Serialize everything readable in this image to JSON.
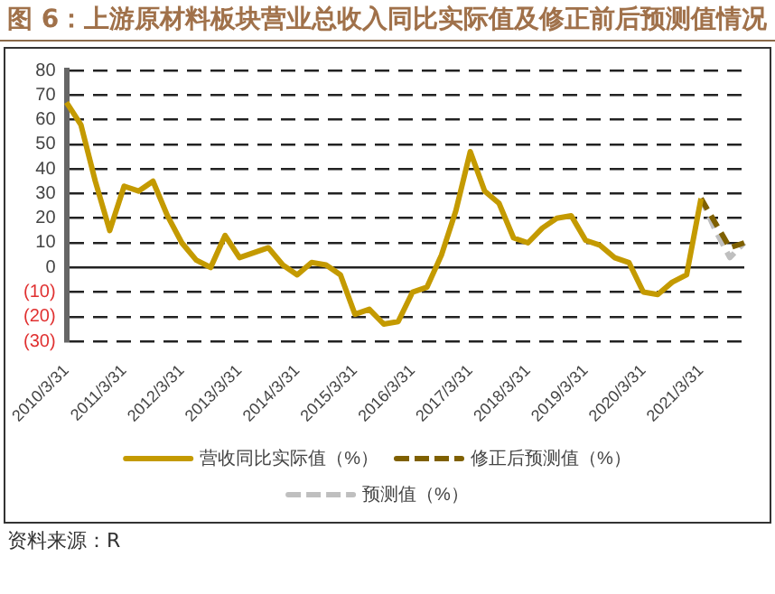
{
  "chart_data": {
    "type": "line",
    "title": "图 6：上游原材料板块营业总收入同比实际值及修正前后预测值情况",
    "categories": [
      "2010/3/31",
      null,
      null,
      null,
      "2011/3/31",
      null,
      null,
      null,
      "2012/3/31",
      null,
      null,
      null,
      "2013/3/31",
      null,
      null,
      null,
      "2014/3/31",
      null,
      null,
      null,
      "2015/3/31",
      null,
      null,
      null,
      "2016/3/31",
      null,
      null,
      null,
      "2017/3/31",
      null,
      null,
      null,
      "2018/3/31",
      null,
      null,
      null,
      "2019/3/31",
      null,
      null,
      null,
      "2020/3/31",
      null,
      null,
      null,
      "2021/3/31",
      null,
      null,
      null
    ],
    "series": [
      {
        "name": "营收同比实际值（%）",
        "color": "#c49a00",
        "line_style": "solid",
        "values": [
          67,
          58,
          35,
          15,
          33,
          31,
          35,
          21,
          10,
          3,
          0,
          13,
          4,
          6,
          8,
          1,
          -3,
          2,
          1,
          -3,
          -19,
          -17,
          -23,
          -22,
          -10,
          -8,
          5,
          23,
          47,
          31,
          26,
          12,
          10,
          16,
          20,
          21,
          11,
          9,
          4,
          2,
          -10,
          -11,
          -6,
          -3,
          28,
          null,
          null,
          null
        ]
      },
      {
        "name": "修正后预测值（%）",
        "color": "#7f6000",
        "line_style": "dashed",
        "values": [
          null,
          null,
          null,
          null,
          null,
          null,
          null,
          null,
          null,
          null,
          null,
          null,
          null,
          null,
          null,
          null,
          null,
          null,
          null,
          null,
          null,
          null,
          null,
          null,
          null,
          null,
          null,
          null,
          null,
          null,
          null,
          null,
          null,
          null,
          null,
          null,
          null,
          null,
          null,
          null,
          null,
          null,
          null,
          null,
          28,
          18,
          8,
          10
        ]
      },
      {
        "name": "预测值（%）",
        "color": "#bfbfbf",
        "line_style": "dashed",
        "values": [
          null,
          null,
          null,
          null,
          null,
          null,
          null,
          null,
          null,
          null,
          null,
          null,
          null,
          null,
          null,
          null,
          null,
          null,
          null,
          null,
          null,
          null,
          null,
          null,
          null,
          null,
          null,
          null,
          null,
          null,
          null,
          null,
          null,
          null,
          null,
          null,
          null,
          null,
          null,
          null,
          null,
          null,
          null,
          null,
          28,
          15,
          4,
          10
        ]
      }
    ],
    "ylim": [
      -30,
      80
    ],
    "yticks": [
      {
        "value": -30,
        "label": "(30)"
      },
      {
        "value": -20,
        "label": "(20)"
      },
      {
        "value": -10,
        "label": "(10)"
      },
      0,
      10,
      20,
      30,
      40,
      50,
      60,
      70,
      80
    ],
    "grid": "y",
    "legend": "bottom",
    "marker": "none",
    "annotations": [
      "资料来源：R"
    ]
  }
}
